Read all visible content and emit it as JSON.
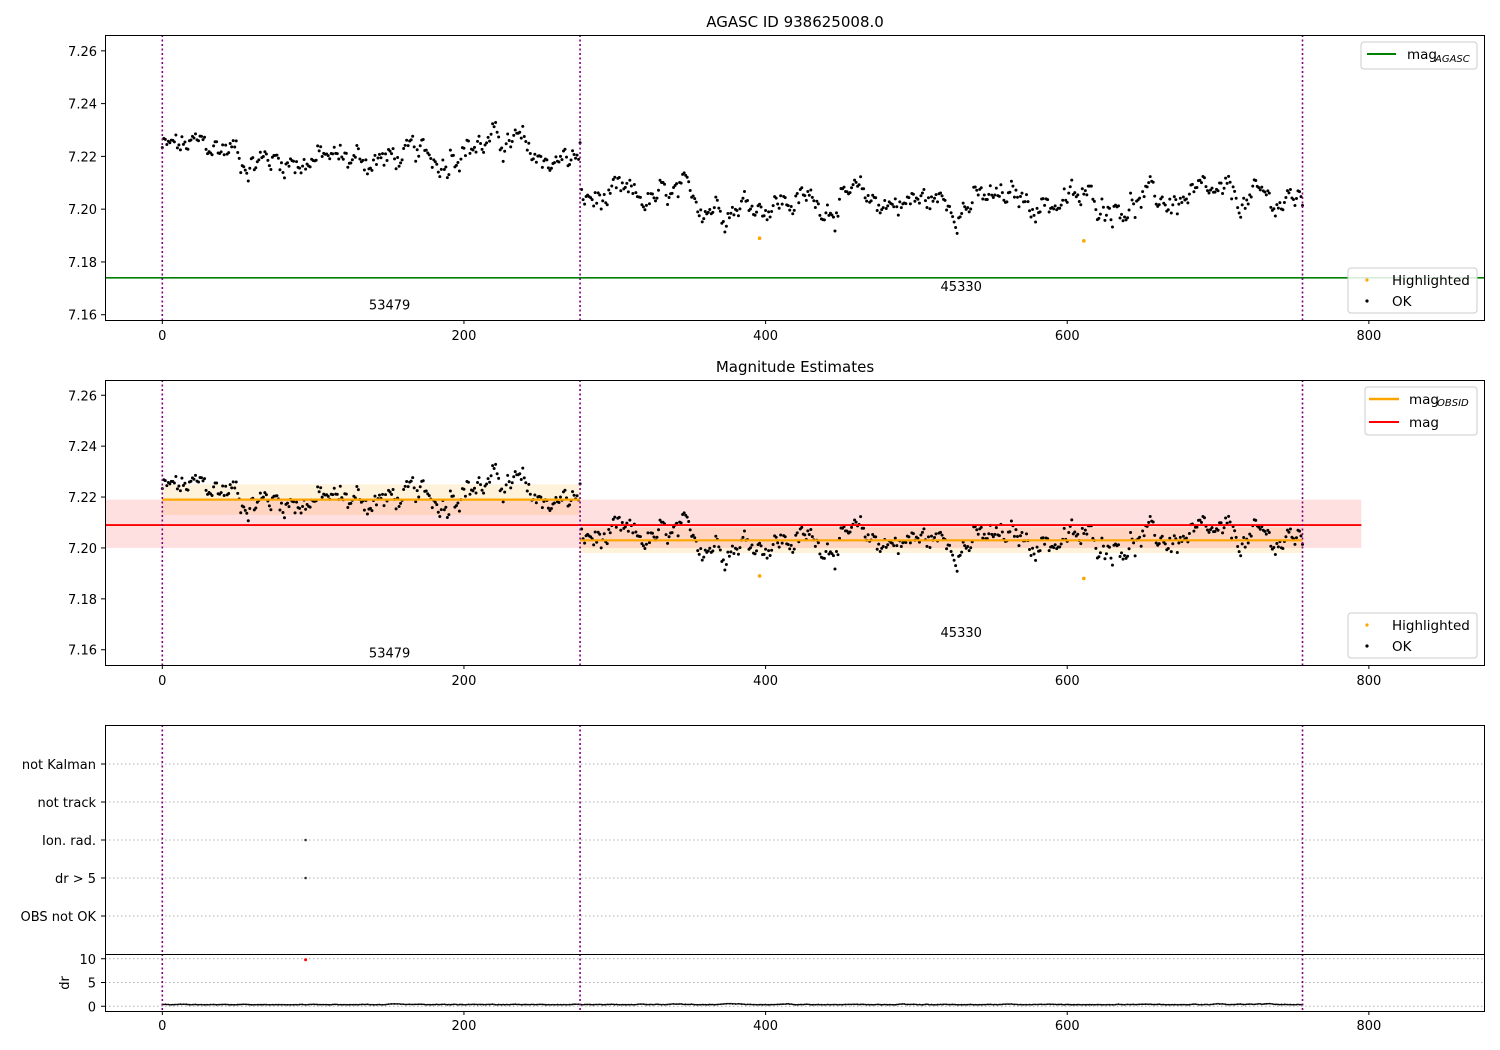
{
  "chart_data": [
    {
      "type": "scatter",
      "title": "AGASC ID 938625008.0",
      "xlim": [
        -38,
        877
      ],
      "ylim": [
        7.158,
        7.266
      ],
      "xticks": [
        0,
        200,
        400,
        600,
        800
      ],
      "yticks": [
        7.16,
        7.18,
        7.2,
        7.22,
        7.24,
        7.26
      ],
      "vlines": [
        0,
        277,
        756
      ],
      "hlines": [
        {
          "name": "mag_AGASC",
          "y": 7.174,
          "color": "#008000"
        }
      ],
      "obsid_labels": [
        {
          "x": 137,
          "y": 7.162,
          "text": "53479"
        },
        {
          "x": 516,
          "y": 7.169,
          "text": "45330"
        }
      ],
      "highlighted_points": [
        {
          "x": 396,
          "y": 7.189
        },
        {
          "x": 611,
          "y": 7.188
        }
      ],
      "legend_upper": [
        {
          "name": "mag",
          "sub": "AGASC",
          "color": "#008000",
          "kind": "line"
        }
      ],
      "legend_lower": [
        {
          "name": "Highlighted",
          "color": "#ffa500",
          "kind": "dot"
        },
        {
          "name": "OK",
          "color": "#000000",
          "kind": "dot"
        }
      ],
      "legend_position": "upper right / lower right"
    },
    {
      "type": "scatter",
      "title": "Magnitude Estimates",
      "xlim": [
        -38,
        877
      ],
      "ylim": [
        7.154,
        7.266
      ],
      "xticks": [
        0,
        200,
        400,
        600,
        800
      ],
      "yticks": [
        7.16,
        7.18,
        7.2,
        7.22,
        7.24,
        7.26
      ],
      "vlines": [
        0,
        277,
        756
      ],
      "obsid_labels": [
        {
          "x": 137,
          "y": 7.157,
          "text": "53479"
        },
        {
          "x": 516,
          "y": 7.165,
          "text": "45330"
        }
      ],
      "highlighted_points": [
        {
          "x": 396,
          "y": 7.189
        },
        {
          "x": 611,
          "y": 7.188
        }
      ],
      "segments": [
        {
          "name": "mag_OBSID",
          "x0": 0,
          "x1": 277,
          "y": 7.219,
          "lo": 7.213,
          "hi": 7.225,
          "color": "#ffa500"
        },
        {
          "name": "mag_OBSID",
          "x0": 277,
          "x1": 756,
          "y": 7.203,
          "lo": 7.198,
          "hi": 7.208,
          "color": "#ffa500"
        },
        {
          "name": "mag",
          "x0": -38,
          "x1": 795,
          "y": 7.209,
          "lo": 7.2,
          "hi": 7.219,
          "color": "#ff0000"
        }
      ],
      "legend_upper": [
        {
          "name": "mag",
          "sub": "OBSID",
          "color": "#ffa500",
          "kind": "line"
        },
        {
          "name": "mag",
          "sub": "",
          "color": "#ff0000",
          "kind": "line"
        }
      ],
      "legend_lower": [
        {
          "name": "Highlighted",
          "color": "#ffa500",
          "kind": "dot"
        },
        {
          "name": "OK",
          "color": "#000000",
          "kind": "dot"
        }
      ]
    },
    {
      "type": "scatter",
      "title": "",
      "xlim": [
        -38,
        877
      ],
      "categories": [
        "OBS not OK",
        "dr > 5",
        "Ion. rad.",
        "not track",
        "not Kalman"
      ],
      "flag_points": [
        {
          "x": 95,
          "category": "dr > 5"
        },
        {
          "x": 95,
          "category": "Ion. rad."
        }
      ],
      "vlines": [
        0,
        277,
        756
      ]
    },
    {
      "type": "scatter",
      "title": "",
      "ylabel": "dr",
      "xlim": [
        -38,
        877
      ],
      "ylim": [
        -1,
        11
      ],
      "xticks": [
        0,
        200,
        400,
        600,
        800
      ],
      "yticks": [
        0,
        5,
        10
      ],
      "vlines": [
        0,
        277,
        756
      ],
      "outlier_points": [
        {
          "x": 95,
          "y": 9.8,
          "color": "#ff0000"
        }
      ],
      "baseline_dr": 0.3
    }
  ],
  "series_model": {
    "note_visible": false,
    "segments": [
      {
        "x0": 0,
        "x1": 277,
        "base": 7.219
      },
      {
        "x0": 278,
        "x1": 756,
        "base": 7.203
      }
    ]
  }
}
